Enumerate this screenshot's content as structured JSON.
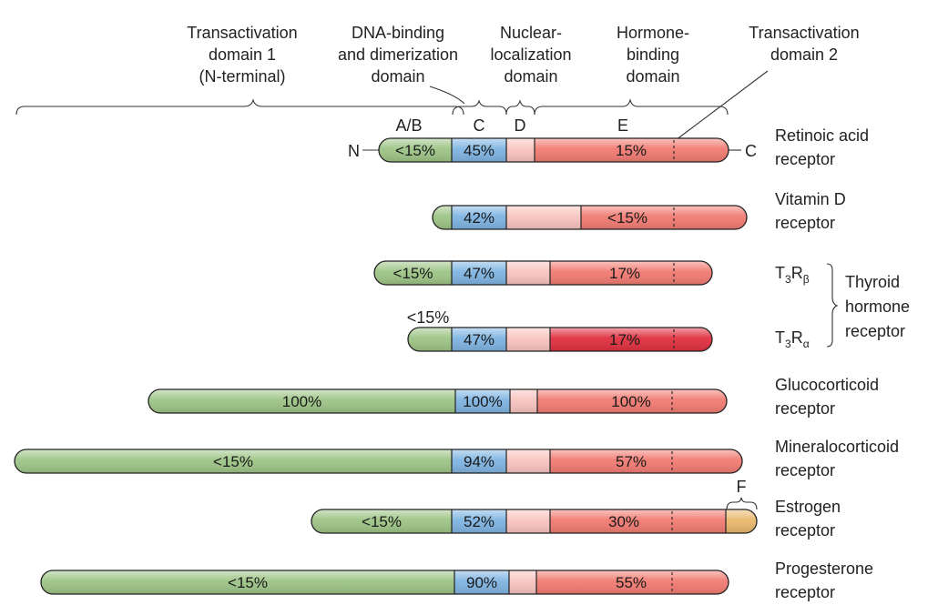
{
  "domains": {
    "td1": [
      "Transactivation",
      "domain 1",
      "(N-terminal)"
    ],
    "dbd": [
      "DNA-binding",
      "and dimerization",
      "domain"
    ],
    "nls": [
      "Nuclear-",
      "localization",
      "domain"
    ],
    "hbd": [
      "Hormone-",
      "binding",
      "domain"
    ],
    "td2": [
      "Transactivation",
      "domain 2"
    ]
  },
  "regions": {
    "ab": "A/B",
    "c": "C",
    "d": "D",
    "e": "E",
    "f": "F"
  },
  "termini": {
    "n": "N",
    "c": "C"
  },
  "receptors": [
    {
      "name": [
        "Retinoic acid",
        "receptor"
      ],
      "ab": "<15%",
      "c": "45%",
      "e": "15%"
    },
    {
      "name": [
        "Vitamin D",
        "receptor"
      ],
      "ab": "",
      "c": "42%",
      "e": "<15%"
    },
    {
      "name": [
        "T",
        "3",
        "R",
        "β"
      ],
      "ab": "<15%",
      "c": "47%",
      "e": "17%"
    },
    {
      "name": [
        "T",
        "3",
        "R",
        "α"
      ],
      "ab": "<15%",
      "c": "47%",
      "e": "17%"
    },
    {
      "name": [
        "Glucocorticoid",
        "receptor"
      ],
      "ab": "100%",
      "c": "100%",
      "e": "100%"
    },
    {
      "name": [
        "Mineralocorticoid",
        "receptor"
      ],
      "ab": "<15%",
      "c": "94%",
      "e": "57%"
    },
    {
      "name": [
        "Estrogen",
        "receptor"
      ],
      "ab": "<15%",
      "c": "52%",
      "e": "30%"
    },
    {
      "name": [
        "Progesterone",
        "receptor"
      ],
      "ab": "<15%",
      "c": "90%",
      "e": "55%"
    }
  ],
  "thyroid_group": [
    "Thyroid",
    "hormone",
    "receptor"
  ],
  "colors": {
    "ab": "#9dc486",
    "c": "#7fb4e2",
    "d": "#f8c4bf",
    "e": "#f17b72",
    "e_alpha": "#e0303f",
    "f": "#e9b86c"
  }
}
